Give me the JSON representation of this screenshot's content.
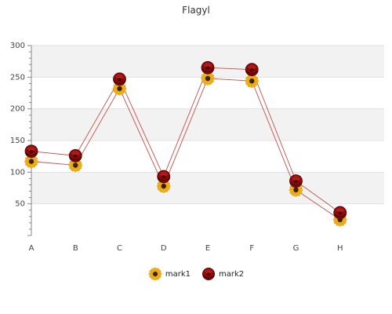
{
  "chart_data": {
    "type": "line",
    "title": "Flagyl",
    "categories": [
      "A",
      "B",
      "C",
      "D",
      "E",
      "F",
      "G",
      "H"
    ],
    "ylim": [
      0,
      300
    ],
    "yticks": [
      50,
      100,
      150,
      200,
      250,
      300
    ],
    "grid": "horizontal bands",
    "legend_position": "bottom",
    "series": [
      {
        "name": "mark1",
        "values": [
          117,
          111,
          232,
          78,
          248,
          244,
          72,
          25
        ],
        "color": "#c0504d",
        "marker": "sunflower-icon"
      },
      {
        "name": "mark2",
        "values": [
          133,
          126,
          247,
          93,
          265,
          262,
          86,
          36
        ],
        "color": "#c0504d",
        "marker": "rose-icon"
      }
    ]
  }
}
